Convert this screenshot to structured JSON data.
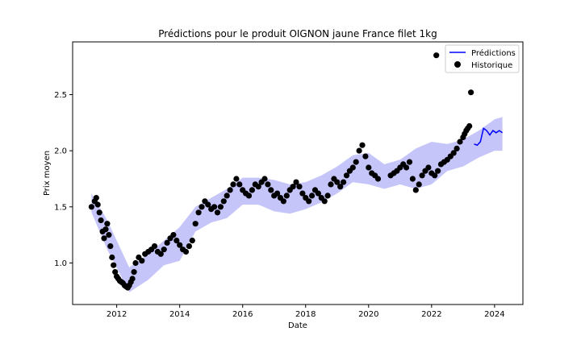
{
  "chart_data": {
    "type": "scatter",
    "title": "Prédictions pour le produit OIGNON jaune France filet 1kg",
    "xlabel": "Date",
    "ylabel": "Prix moyen",
    "xlim": [
      2010.6,
      2024.9
    ],
    "ylim": [
      0.63,
      2.97
    ],
    "x_ticks": [
      2012,
      2014,
      2016,
      2018,
      2020,
      2022,
      2024
    ],
    "y_ticks": [
      1.0,
      1.5,
      2.0,
      2.5
    ],
    "x_tick_labels": [
      "2012",
      "2014",
      "2016",
      "2018",
      "2020",
      "2022",
      "2024"
    ],
    "y_tick_labels": [
      "1.0",
      "1.5",
      "2.0",
      "2.5"
    ],
    "grid": false,
    "legend_position": "top-right",
    "colors": {
      "prediction": "#0000ff",
      "band": "#8c8cf4",
      "history": "#000000"
    },
    "series": [
      {
        "name": "Prédictions",
        "kind": "line",
        "x": [
          2023.35,
          2023.45,
          2023.55,
          2023.65,
          2023.75,
          2023.85,
          2023.95,
          2024.05,
          2024.15,
          2024.25
        ],
        "y": [
          2.06,
          2.05,
          2.08,
          2.2,
          2.18,
          2.14,
          2.18,
          2.16,
          2.18,
          2.16
        ]
      },
      {
        "name": "Historique",
        "kind": "scatter",
        "x": [
          2011.2,
          2011.3,
          2011.35,
          2011.4,
          2011.45,
          2011.5,
          2011.55,
          2011.6,
          2011.65,
          2011.7,
          2011.75,
          2011.8,
          2011.85,
          2011.9,
          2011.95,
          2012.0,
          2012.05,
          2012.1,
          2012.15,
          2012.2,
          2012.25,
          2012.3,
          2012.35,
          2012.4,
          2012.45,
          2012.5,
          2012.55,
          2012.6,
          2012.7,
          2012.8,
          2012.9,
          2013.0,
          2013.1,
          2013.2,
          2013.3,
          2013.4,
          2013.5,
          2013.6,
          2013.7,
          2013.8,
          2013.9,
          2014.0,
          2014.1,
          2014.2,
          2014.3,
          2014.4,
          2014.5,
          2014.6,
          2014.7,
          2014.8,
          2014.9,
          2015.0,
          2015.1,
          2015.2,
          2015.3,
          2015.4,
          2015.5,
          2015.6,
          2015.7,
          2015.8,
          2015.9,
          2016.0,
          2016.1,
          2016.2,
          2016.3,
          2016.4,
          2016.5,
          2016.6,
          2016.7,
          2016.8,
          2016.9,
          2017.0,
          2017.1,
          2017.2,
          2017.3,
          2017.4,
          2017.5,
          2017.6,
          2017.7,
          2017.8,
          2017.9,
          2018.0,
          2018.1,
          2018.2,
          2018.3,
          2018.4,
          2018.5,
          2018.6,
          2018.7,
          2018.8,
          2018.9,
          2019.0,
          2019.1,
          2019.2,
          2019.3,
          2019.4,
          2019.5,
          2019.6,
          2019.7,
          2019.8,
          2019.9,
          2020.0,
          2020.1,
          2020.2,
          2020.3,
          2020.7,
          2020.8,
          2020.9,
          2021.0,
          2021.1,
          2021.2,
          2021.3,
          2021.4,
          2021.5,
          2021.6,
          2021.7,
          2021.8,
          2021.9,
          2022.0,
          2022.1,
          2022.15,
          2022.2,
          2022.3,
          2022.4,
          2022.5,
          2022.6,
          2022.7,
          2022.8,
          2022.9,
          2023.0,
          2023.05,
          2023.1,
          2023.15,
          2023.2,
          2023.25
        ],
        "y": [
          1.5,
          1.55,
          1.58,
          1.52,
          1.45,
          1.38,
          1.28,
          1.22,
          1.3,
          1.35,
          1.25,
          1.15,
          1.05,
          0.98,
          0.92,
          0.88,
          0.86,
          0.84,
          0.83,
          0.82,
          0.8,
          0.79,
          0.78,
          0.8,
          0.83,
          0.86,
          0.92,
          1.0,
          1.05,
          1.02,
          1.08,
          1.1,
          1.12,
          1.15,
          1.1,
          1.08,
          1.12,
          1.18,
          1.22,
          1.25,
          1.2,
          1.16,
          1.12,
          1.1,
          1.15,
          1.2,
          1.35,
          1.45,
          1.5,
          1.55,
          1.52,
          1.48,
          1.5,
          1.45,
          1.5,
          1.55,
          1.6,
          1.65,
          1.7,
          1.75,
          1.7,
          1.65,
          1.62,
          1.6,
          1.65,
          1.7,
          1.68,
          1.72,
          1.75,
          1.7,
          1.65,
          1.6,
          1.62,
          1.58,
          1.55,
          1.6,
          1.65,
          1.68,
          1.72,
          1.68,
          1.62,
          1.58,
          1.55,
          1.6,
          1.65,
          1.62,
          1.58,
          1.55,
          1.6,
          1.7,
          1.75,
          1.72,
          1.68,
          1.72,
          1.78,
          1.82,
          1.85,
          1.9,
          2.0,
          2.05,
          1.95,
          1.85,
          1.8,
          1.78,
          1.75,
          1.78,
          1.8,
          1.82,
          1.85,
          1.88,
          1.85,
          1.9,
          1.75,
          1.65,
          1.7,
          1.78,
          1.82,
          1.85,
          1.8,
          1.78,
          2.85,
          1.82,
          1.88,
          1.9,
          1.92,
          1.95,
          1.98,
          2.02,
          2.08,
          2.12,
          2.15,
          2.18,
          2.2,
          2.22,
          2.52
        ]
      }
    ],
    "band": {
      "x": [
        2011.2,
        2011.7,
        2012.4,
        2013.0,
        2013.5,
        2014.0,
        2014.5,
        2015.0,
        2015.5,
        2016.0,
        2016.5,
        2017.0,
        2017.5,
        2018.0,
        2018.5,
        2019.0,
        2019.5,
        2020.0,
        2020.5,
        2021.0,
        2021.5,
        2022.0,
        2022.5,
        2023.0,
        2023.5,
        2024.0,
        2024.25
      ],
      "lower": [
        1.45,
        1.12,
        0.74,
        0.85,
        0.98,
        1.02,
        1.28,
        1.36,
        1.4,
        1.52,
        1.52,
        1.46,
        1.44,
        1.48,
        1.54,
        1.62,
        1.72,
        1.7,
        1.66,
        1.7,
        1.66,
        1.7,
        1.82,
        1.86,
        1.94,
        2.0,
        2.0
      ],
      "upper": [
        1.62,
        1.38,
        0.96,
        1.08,
        1.2,
        1.32,
        1.5,
        1.58,
        1.66,
        1.76,
        1.76,
        1.74,
        1.7,
        1.72,
        1.78,
        1.86,
        1.96,
        1.98,
        1.88,
        1.92,
        2.02,
        2.08,
        2.06,
        2.1,
        2.18,
        2.28,
        2.3
      ]
    }
  }
}
